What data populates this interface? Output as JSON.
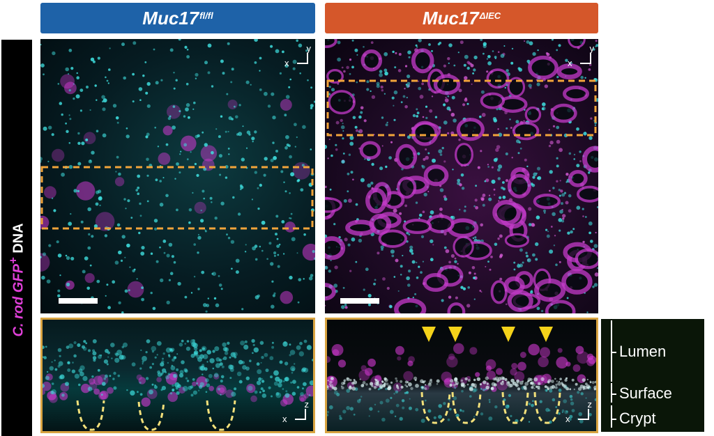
{
  "side_label": {
    "part1": "C. rod GFP",
    "part1_sup": "+",
    "part2": " DNA",
    "color_magenta": "#e040d8"
  },
  "headers": {
    "left": {
      "base": "Muc17",
      "sup": "fl/fl",
      "color": "#1e62a8"
    },
    "right": {
      "base": "Muc17",
      "sup": "ΔIEC",
      "color": "#d5572a"
    }
  },
  "axes": {
    "top_y": "y",
    "top_x": "x",
    "bottom_z": "z",
    "bottom_x": "x"
  },
  "legend": {
    "lumen": "Lumen",
    "surface": "Surface",
    "crypt": "Crypt"
  },
  "colors": {
    "cyan": "#3fe0e0",
    "magenta": "#d83ad8",
    "roi": "#f2a43a",
    "arrow": "#f4d21a",
    "frame": "#d9a441"
  }
}
